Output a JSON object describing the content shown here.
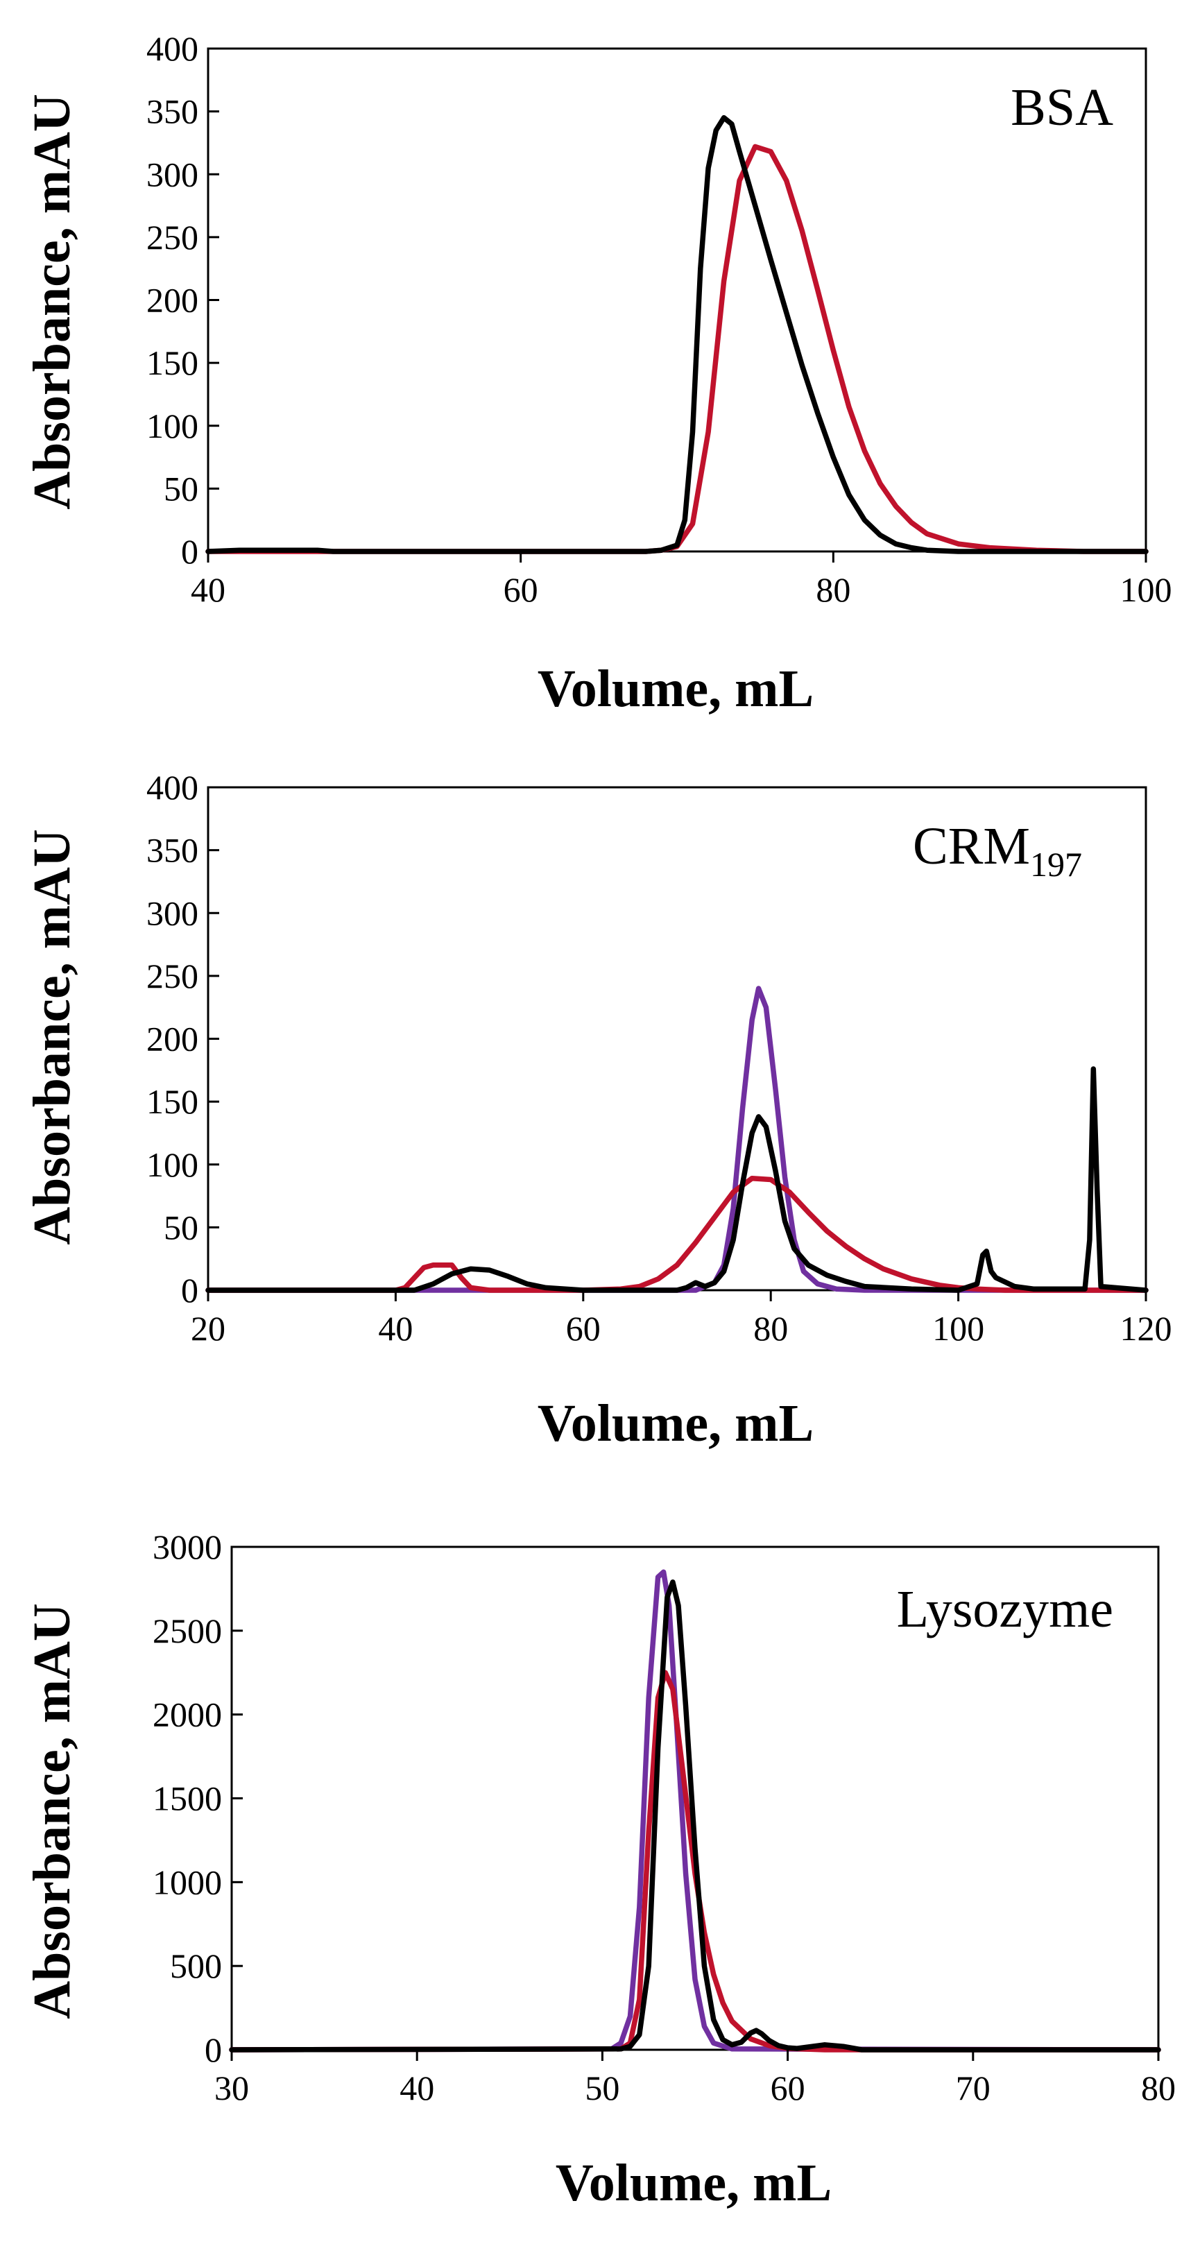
{
  "colors": {
    "black": "#000000",
    "red": "#C0122C",
    "purple": "#7030A0"
  },
  "chart_data": [
    {
      "type": "line",
      "title": "BSA",
      "title_sub": "",
      "xlabel": "Volume, mL",
      "ylabel": "Absorbance, mAU",
      "xlim": [
        40,
        100
      ],
      "ylim": [
        0,
        400
      ],
      "xticks": [
        "40",
        "60",
        "80",
        "100"
      ],
      "yticks": [
        "0",
        "50",
        "100",
        "150",
        "200",
        "250",
        "300",
        "350",
        "400"
      ],
      "grid": false,
      "series": [
        {
          "color": "red",
          "x": [
            40,
            60,
            68,
            69,
            70,
            71,
            72,
            73,
            74,
            75,
            76,
            77,
            78,
            79,
            80,
            81,
            82,
            83,
            84,
            85,
            86,
            88,
            90,
            93,
            96,
            100
          ],
          "y": [
            0,
            0,
            0,
            1,
            4,
            22,
            95,
            215,
            295,
            322,
            318,
            295,
            255,
            208,
            160,
            115,
            80,
            54,
            36,
            23,
            14,
            6,
            3,
            1,
            0,
            0
          ]
        },
        {
          "color": "black",
          "x": [
            40,
            42,
            45,
            47,
            48,
            60,
            68,
            69,
            70,
            70.5,
            71,
            71.5,
            72,
            72.5,
            73,
            73.5,
            74,
            75,
            76,
            77,
            78,
            79,
            80,
            81,
            82,
            83,
            84,
            85,
            86,
            88,
            90,
            100
          ],
          "y": [
            0,
            1,
            1,
            1,
            0,
            0,
            0,
            1,
            5,
            25,
            95,
            225,
            305,
            335,
            345,
            340,
            318,
            275,
            232,
            190,
            148,
            110,
            75,
            45,
            25,
            13,
            6,
            3,
            1,
            0,
            0,
            0
          ]
        }
      ]
    },
    {
      "type": "line",
      "title": "CRM",
      "title_sub": "197",
      "xlabel": "Volume, mL",
      "ylabel": "Absorbance, mAU",
      "xlim": [
        20,
        120
      ],
      "ylim": [
        0,
        400
      ],
      "xticks": [
        "20",
        "40",
        "60",
        "80",
        "100",
        "120"
      ],
      "yticks": [
        "0",
        "50",
        "100",
        "150",
        "200",
        "250",
        "300",
        "350",
        "400"
      ],
      "grid": false,
      "series": [
        {
          "color": "purple",
          "x": [
            20,
            72,
            74,
            75,
            76,
            77,
            78,
            78.7,
            79.5,
            80.5,
            81.5,
            82.5,
            83.5,
            85,
            87,
            90,
            120
          ],
          "y": [
            0,
            0,
            6,
            20,
            65,
            145,
            215,
            240,
            225,
            160,
            90,
            40,
            15,
            5,
            1,
            0,
            0
          ]
        },
        {
          "color": "red",
          "x": [
            20,
            40,
            41,
            42,
            43,
            44,
            45,
            46,
            47,
            48,
            50,
            60,
            64,
            66,
            68,
            70,
            72,
            74,
            76,
            78,
            80,
            82,
            84,
            86,
            88,
            90,
            92,
            95,
            98,
            100,
            102,
            105,
            120
          ],
          "y": [
            0,
            0,
            2,
            10,
            18,
            20,
            20,
            20,
            10,
            2,
            0,
            0,
            1,
            3,
            9,
            20,
            38,
            58,
            78,
            89,
            88,
            78,
            62,
            47,
            35,
            25,
            17,
            9,
            4,
            2,
            1,
            0,
            0
          ]
        },
        {
          "color": "black",
          "x": [
            20,
            42,
            44,
            46,
            48,
            50,
            52,
            54,
            56,
            60,
            70,
            71,
            72,
            73,
            74,
            75,
            76,
            77,
            78,
            78.7,
            79.5,
            80.5,
            81.5,
            82.5,
            84,
            86,
            88,
            90,
            95,
            100,
            102,
            102.6,
            103,
            103.5,
            104,
            106,
            108,
            113.5,
            114,
            114.4,
            114.8,
            115.2,
            120
          ],
          "y": [
            0,
            0,
            5,
            13,
            17,
            16,
            11,
            5,
            2,
            0,
            0,
            2,
            6,
            3,
            6,
            15,
            40,
            85,
            125,
            138,
            130,
            95,
            55,
            33,
            20,
            12,
            7,
            3,
            1,
            0,
            5,
            28,
            31,
            15,
            10,
            3,
            1,
            1,
            40,
            176,
            80,
            3,
            0
          ]
        }
      ]
    },
    {
      "type": "line",
      "title": "Lysozyme",
      "title_sub": "",
      "xlabel": "Volume, mL",
      "ylabel": "Absorbance, mAU",
      "xlim": [
        30,
        80
      ],
      "ylim": [
        0,
        3000
      ],
      "xticks": [
        "30",
        "40",
        "50",
        "60",
        "70",
        "80"
      ],
      "yticks": [
        "0",
        "500",
        "1000",
        "1500",
        "2000",
        "2500",
        "3000"
      ],
      "grid": false,
      "series": [
        {
          "color": "purple",
          "x": [
            30,
            50.5,
            51,
            51.5,
            52,
            52.5,
            53,
            53.3,
            53.6,
            54,
            54.5,
            55,
            55.5,
            56,
            57,
            80
          ],
          "y": [
            0,
            5,
            40,
            200,
            850,
            2100,
            2820,
            2850,
            2650,
            1950,
            1050,
            420,
            140,
            40,
            5,
            0
          ]
        },
        {
          "color": "red",
          "x": [
            30,
            51,
            51.5,
            52,
            52.5,
            53,
            53.4,
            53.8,
            54.3,
            55,
            55.5,
            56,
            56.5,
            57,
            58,
            59,
            60,
            62,
            80
          ],
          "y": [
            0,
            5,
            40,
            300,
            1300,
            2100,
            2250,
            2150,
            1700,
            1050,
            700,
            450,
            280,
            170,
            65,
            25,
            8,
            0,
            0
          ]
        },
        {
          "color": "black",
          "x": [
            30,
            51,
            51.5,
            52,
            52.5,
            53,
            53.5,
            53.8,
            54.1,
            54.5,
            55,
            55.5,
            56,
            56.5,
            57,
            57.5,
            58,
            58.3,
            58.6,
            59,
            59.5,
            60,
            60.5,
            61,
            62,
            63,
            64,
            80
          ],
          "y": [
            0,
            5,
            20,
            90,
            500,
            1800,
            2700,
            2790,
            2650,
            2050,
            1200,
            500,
            180,
            60,
            30,
            45,
            100,
            115,
            95,
            55,
            25,
            12,
            8,
            15,
            30,
            20,
            0,
            0
          ]
        }
      ]
    }
  ]
}
